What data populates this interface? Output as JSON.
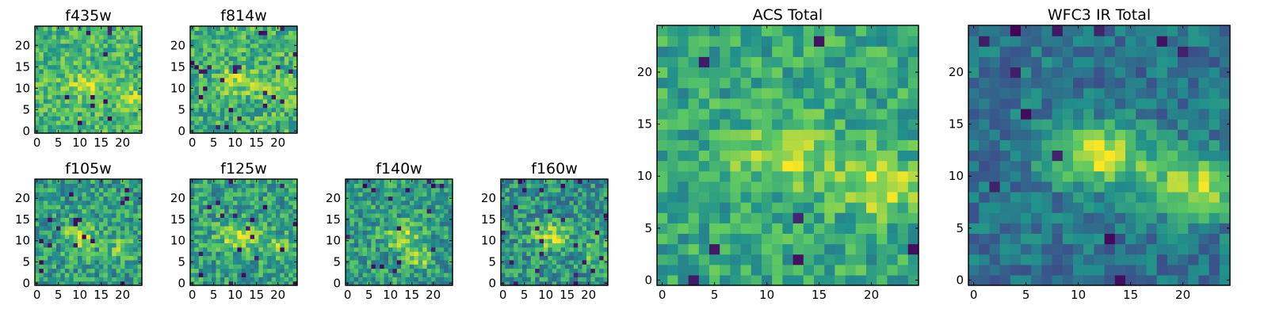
{
  "figure": {
    "colormap": [
      "#440154",
      "#3b528b",
      "#21918c",
      "#5ec962",
      "#fde725"
    ]
  },
  "chart_data": [
    {
      "type": "heatmap",
      "title": "f435w",
      "grid": [
        25,
        25
      ],
      "xlim": [
        0,
        24
      ],
      "ylim": [
        0,
        24
      ],
      "xticks": [
        0,
        5,
        10,
        15,
        20
      ],
      "yticks": [
        0,
        5,
        10,
        15,
        20
      ],
      "seed": 11,
      "base": 0.66,
      "noise": 0.2,
      "dark_frac": 0.02,
      "peaks": [
        {
          "x": 12,
          "y": 11,
          "amp": 0.22,
          "sx": 3.5,
          "sy": 1.8
        },
        {
          "x": 21,
          "y": 8,
          "amp": 0.2,
          "sx": 2.5,
          "sy": 1.8
        }
      ]
    },
    {
      "type": "heatmap",
      "title": "f814w",
      "grid": [
        25,
        25
      ],
      "xlim": [
        0,
        24
      ],
      "ylim": [
        0,
        24
      ],
      "xticks": [
        0,
        5,
        10,
        15,
        20
      ],
      "yticks": [
        0,
        5,
        10,
        15,
        20
      ],
      "seed": 23,
      "base": 0.64,
      "noise": 0.22,
      "dark_frac": 0.03,
      "peaks": [
        {
          "x": 11,
          "y": 12,
          "amp": 0.25,
          "sx": 3,
          "sy": 2
        },
        {
          "x": 21,
          "y": 9,
          "amp": 0.22,
          "sx": 2.5,
          "sy": 2
        }
      ]
    },
    {
      "type": "heatmap",
      "title": "f105w",
      "grid": [
        25,
        25
      ],
      "xlim": [
        0,
        24
      ],
      "ylim": [
        0,
        24
      ],
      "xticks": [
        0,
        5,
        10,
        15,
        20
      ],
      "yticks": [
        0,
        5,
        10,
        15,
        20
      ],
      "seed": 37,
      "base": 0.55,
      "noise": 0.22,
      "dark_frac": 0.03,
      "peaks": [
        {
          "x": 10,
          "y": 11,
          "amp": 0.32,
          "sx": 2.5,
          "sy": 2.5
        },
        {
          "x": 20,
          "y": 8,
          "amp": 0.22,
          "sx": 2.5,
          "sy": 2
        }
      ]
    },
    {
      "type": "heatmap",
      "title": "f125w",
      "grid": [
        25,
        25
      ],
      "xlim": [
        0,
        24
      ],
      "ylim": [
        0,
        24
      ],
      "xticks": [
        0,
        5,
        10,
        15,
        20
      ],
      "yticks": [
        0,
        5,
        10,
        15,
        20
      ],
      "seed": 41,
      "base": 0.56,
      "noise": 0.22,
      "dark_frac": 0.03,
      "peaks": [
        {
          "x": 11,
          "y": 11,
          "amp": 0.3,
          "sx": 3.5,
          "sy": 2.2
        },
        {
          "x": 20,
          "y": 8,
          "amp": 0.22,
          "sx": 2.5,
          "sy": 2
        }
      ]
    },
    {
      "type": "heatmap",
      "title": "f140w",
      "grid": [
        25,
        25
      ],
      "xlim": [
        0,
        24
      ],
      "ylim": [
        0,
        24
      ],
      "xticks": [
        0,
        5,
        10,
        15,
        20
      ],
      "yticks": [
        0,
        5,
        10,
        15,
        20
      ],
      "seed": 53,
      "base": 0.55,
      "noise": 0.22,
      "dark_frac": 0.03,
      "peaks": [
        {
          "x": 13,
          "y": 11,
          "amp": 0.3,
          "sx": 3,
          "sy": 2.2
        },
        {
          "x": 17,
          "y": 6,
          "amp": 0.28,
          "sx": 2,
          "sy": 1.5
        }
      ]
    },
    {
      "type": "heatmap",
      "title": "f160w",
      "grid": [
        25,
        25
      ],
      "xlim": [
        0,
        24
      ],
      "ylim": [
        0,
        24
      ],
      "xticks": [
        0,
        5,
        10,
        15,
        20
      ],
      "yticks": [
        0,
        5,
        10,
        15,
        20
      ],
      "seed": 67,
      "base": 0.52,
      "noise": 0.22,
      "dark_frac": 0.03,
      "peaks": [
        {
          "x": 11,
          "y": 11,
          "amp": 0.35,
          "sx": 3,
          "sy": 2.2
        },
        {
          "x": 22,
          "y": 7,
          "amp": 0.3,
          "sx": 2,
          "sy": 2
        }
      ]
    },
    {
      "type": "heatmap",
      "title": "ACS Total",
      "grid": [
        25,
        25
      ],
      "xlim": [
        0,
        24
      ],
      "ylim": [
        0,
        24
      ],
      "xticks": [
        0,
        5,
        10,
        15,
        20
      ],
      "yticks": [
        0,
        5,
        10,
        15,
        20
      ],
      "seed": 79,
      "base": 0.6,
      "noise": 0.18,
      "dark_frac": 0.018,
      "peaks": [
        {
          "x": 12,
          "y": 12,
          "amp": 0.3,
          "sx": 3.5,
          "sy": 2
        },
        {
          "x": 21,
          "y": 9,
          "amp": 0.3,
          "sx": 2.5,
          "sy": 2
        }
      ]
    },
    {
      "type": "heatmap",
      "title": "WFC3 IR Total",
      "grid": [
        25,
        25
      ],
      "xlim": [
        0,
        24
      ],
      "ylim": [
        0,
        24
      ],
      "xticks": [
        0,
        5,
        10,
        15,
        20
      ],
      "yticks": [
        0,
        5,
        10,
        15,
        20
      ],
      "seed": 97,
      "base": 0.38,
      "noise": 0.15,
      "dark_frac": 0.015,
      "peaks": [
        {
          "x": 12,
          "y": 12,
          "amp": 0.55,
          "sx": 3.5,
          "sy": 2
        },
        {
          "x": 21,
          "y": 9,
          "amp": 0.5,
          "sx": 3,
          "sy": 2.2
        }
      ]
    }
  ]
}
